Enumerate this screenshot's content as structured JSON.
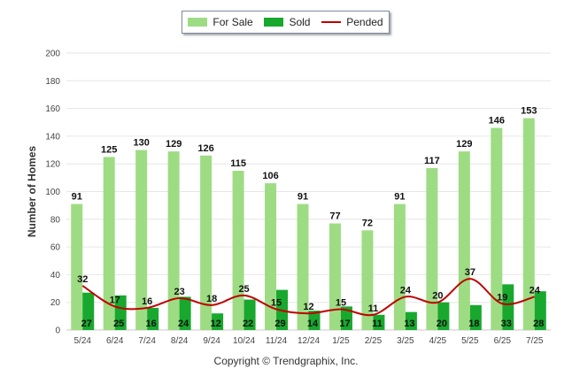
{
  "chart_data": {
    "type": "bar",
    "categories": [
      "5/24",
      "6/24",
      "7/24",
      "8/24",
      "9/24",
      "10/24",
      "11/24",
      "12/24",
      "1/25",
      "2/25",
      "3/25",
      "4/25",
      "5/25",
      "6/25",
      "7/25"
    ],
    "series": [
      {
        "name": "For Sale",
        "type": "bar",
        "color": "#9edc84",
        "values": [
          91,
          125,
          130,
          129,
          126,
          115,
          106,
          91,
          77,
          72,
          91,
          117,
          129,
          146,
          153
        ]
      },
      {
        "name": "Sold",
        "type": "bar",
        "color": "#18a82e",
        "values": [
          27,
          25,
          16,
          24,
          12,
          22,
          29,
          14,
          17,
          11,
          13,
          20,
          18,
          33,
          28
        ]
      },
      {
        "name": "Pended",
        "type": "line",
        "color": "#c00000",
        "values": [
          32,
          17,
          16,
          23,
          18,
          25,
          15,
          12,
          15,
          11,
          24,
          20,
          37,
          19,
          24
        ]
      }
    ],
    "ylabel": "Number of Homes",
    "xlabel": "",
    "ylim": [
      0,
      200
    ],
    "yticks": [
      0,
      20,
      40,
      60,
      80,
      100,
      120,
      140,
      160,
      180,
      200
    ],
    "grid": true,
    "legend_position": "top"
  },
  "legend": {
    "for_sale": "For Sale",
    "sold": "Sold",
    "pended": "Pended"
  },
  "footer": "Copyright © Trendgraphix, Inc."
}
